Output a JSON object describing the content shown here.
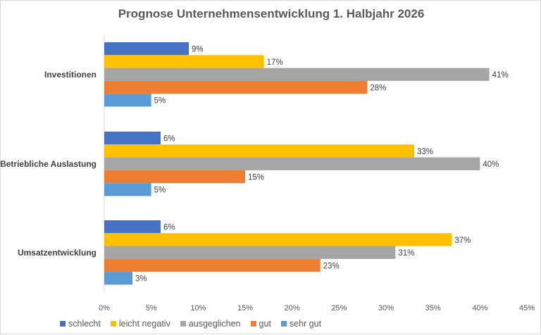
{
  "chart_data": {
    "type": "bar",
    "orientation": "horizontal",
    "title": "Prognose Unternehmensentwicklung 1. Halbjahr 2026",
    "categories": [
      "Investitionen",
      "Betriebliche Auslastung",
      "Umsatzentwicklung"
    ],
    "series": [
      {
        "name": "schlecht",
        "color": "#4472c4",
        "values": [
          9,
          6,
          6
        ]
      },
      {
        "name": "leicht negativ",
        "color": "#ffc000",
        "values": [
          17,
          33,
          37
        ]
      },
      {
        "name": "ausgeglichen",
        "color": "#a5a5a5",
        "values": [
          41,
          40,
          31
        ]
      },
      {
        "name": "gut",
        "color": "#ed7d31",
        "values": [
          28,
          15,
          23
        ]
      },
      {
        "name": "sehr gut",
        "color": "#5b9bd5",
        "values": [
          5,
          5,
          3
        ]
      }
    ],
    "xlim": [
      0,
      45
    ],
    "x_ticks": [
      "0%",
      "5%",
      "10%",
      "15%",
      "20%",
      "25%",
      "30%",
      "35%",
      "40%",
      "45%"
    ],
    "value_format": "percent",
    "grid": false,
    "legend": "bottom"
  }
}
